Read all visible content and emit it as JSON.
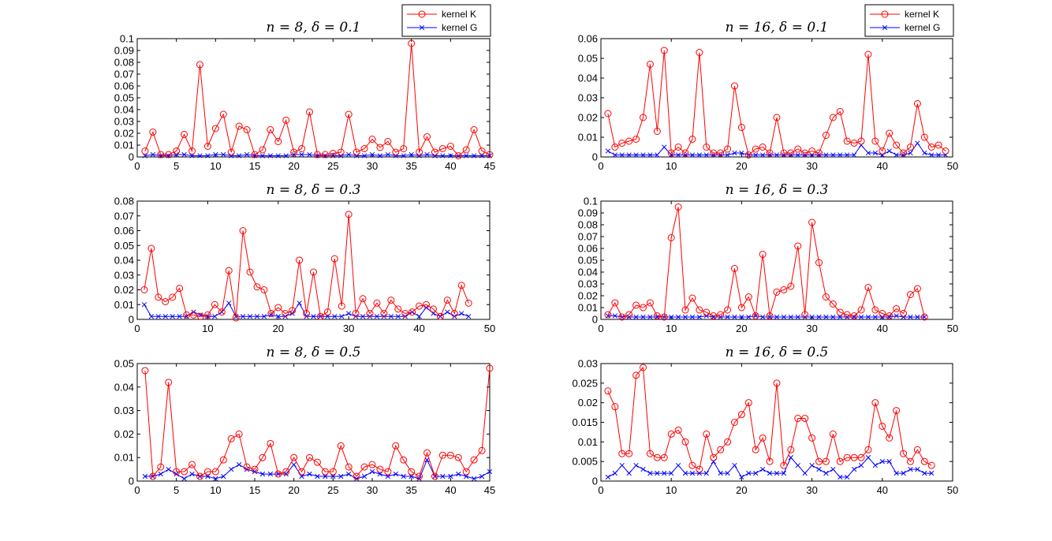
{
  "colors": {
    "kernel_k": "#ff0000",
    "kernel_g": "#0000ff"
  },
  "legend": {
    "kernel_k_label": "kernel K",
    "kernel_g_label": "kernel G"
  },
  "chart_data": [
    {
      "type": "line",
      "title": "n = 8, δ = 0.1",
      "xlim": [
        0,
        45
      ],
      "ylim": [
        0,
        0.1
      ],
      "xticks": [
        0,
        5,
        10,
        15,
        20,
        25,
        30,
        35,
        40,
        45
      ],
      "yticks": [
        0,
        0.01,
        0.02,
        0.03,
        0.04,
        0.05,
        0.06,
        0.07,
        0.08,
        0.09,
        0.1
      ],
      "xticklabels": [
        "0",
        "5",
        "10",
        "15",
        "20",
        "25",
        "30",
        "35",
        "40",
        "45"
      ],
      "yticklabels": [
        "0",
        "0.01",
        "0.02",
        "0.03",
        "0.04",
        "0.05",
        "0.06",
        "0.07",
        "0.08",
        "0.09",
        "0.1"
      ],
      "legend": true,
      "series": [
        {
          "name": "kernel K",
          "marker": "circle",
          "values": [
            0.005,
            0.021,
            0.002,
            0.002,
            0.005,
            0.019,
            0.005,
            0.078,
            0.009,
            0.024,
            0.036,
            0.004,
            0.026,
            0.023,
            0.002,
            0.006,
            0.023,
            0.013,
            0.031,
            0.004,
            0.007,
            0.038,
            0.002,
            0.002,
            0.003,
            0.004,
            0.036,
            0.004,
            0.007,
            0.015,
            0.008,
            0.013,
            0.004,
            0.007,
            0.096,
            0.004,
            0.017,
            0.004,
            0.007,
            0.009,
            0.001,
            0.006,
            0.023,
            0.005,
            0.002
          ]
        },
        {
          "name": "kernel G",
          "marker": "x",
          "values": [
            0.001,
            0.002,
            0.001,
            0.001,
            0.002,
            0.002,
            0.001,
            0.001,
            0.001,
            0.002,
            0.002,
            0.001,
            0.001,
            0.002,
            0.001,
            0.001,
            0.001,
            0.001,
            0.001,
            0.002,
            0.002,
            0.002,
            0.001,
            0.001,
            0.001,
            0.001,
            0.002,
            0.001,
            0.001,
            0.002,
            0.001,
            0.002,
            0.001,
            0.001,
            0.002,
            0.001,
            0.002,
            0.001,
            0.001,
            0.001,
            0.001,
            0.001,
            0.001,
            0.001,
            0.001
          ]
        }
      ]
    },
    {
      "type": "line",
      "title": "n = 16, δ = 0.1",
      "xlim": [
        0,
        50
      ],
      "ylim": [
        0,
        0.06
      ],
      "xticks": [
        0,
        10,
        20,
        30,
        40,
        50
      ],
      "yticks": [
        0,
        0.01,
        0.02,
        0.03,
        0.04,
        0.05,
        0.06
      ],
      "xticklabels": [
        "0",
        "10",
        "20",
        "30",
        "40",
        "50"
      ],
      "yticklabels": [
        "0",
        "0.01",
        "0.02",
        "0.03",
        "0.04",
        "0.05",
        "0.06"
      ],
      "legend": true,
      "series": [
        {
          "name": "kernel K",
          "marker": "circle",
          "values": [
            0.022,
            0.005,
            0.007,
            0.008,
            0.009,
            0.02,
            0.047,
            0.013,
            0.054,
            0.002,
            0.005,
            0.002,
            0.009,
            0.053,
            0.005,
            0.002,
            0.002,
            0.004,
            0.036,
            0.015,
            0.001,
            0.004,
            0.005,
            0.002,
            0.02,
            0.002,
            0.002,
            0.004,
            0.002,
            0.003,
            0.002,
            0.011,
            0.02,
            0.023,
            0.008,
            0.007,
            0.008,
            0.052,
            0.008,
            0.003,
            0.012,
            0.006,
            0.002,
            0.005,
            0.027,
            0.01,
            0.005,
            0.006,
            0.003
          ]
        },
        {
          "name": "kernel G",
          "marker": "x",
          "values": [
            0.003,
            0.001,
            0.001,
            0.001,
            0.001,
            0.001,
            0.001,
            0.001,
            0.005,
            0.001,
            0.001,
            0.001,
            0.001,
            0.001,
            0.001,
            0.001,
            0.001,
            0.001,
            0.002,
            0.002,
            0.001,
            0.001,
            0.001,
            0.001,
            0.001,
            0.001,
            0.001,
            0.001,
            0.001,
            0.001,
            0.001,
            0.001,
            0.001,
            0.001,
            0.001,
            0.001,
            0.006,
            0.002,
            0.002,
            0.001,
            0.003,
            0.001,
            0.001,
            0.002,
            0.007,
            0.002,
            0.001,
            0.001,
            0.001
          ]
        }
      ]
    },
    {
      "type": "line",
      "title": "n = 8, δ = 0.3",
      "xlim": [
        0,
        50
      ],
      "ylim": [
        0,
        0.08
      ],
      "xticks": [
        0,
        10,
        20,
        30,
        40,
        50
      ],
      "yticks": [
        0,
        0.01,
        0.02,
        0.03,
        0.04,
        0.05,
        0.06,
        0.07,
        0.08
      ],
      "xticklabels": [
        "0",
        "10",
        "20",
        "30",
        "40",
        "50"
      ],
      "yticklabels": [
        "0",
        "0.01",
        "0.02",
        "0.03",
        "0.04",
        "0.05",
        "0.06",
        "0.07",
        "0.08"
      ],
      "legend": false,
      "series": [
        {
          "name": "kernel K",
          "marker": "circle",
          "values": [
            0.02,
            0.048,
            0.015,
            0.012,
            0.015,
            0.021,
            0.003,
            0.003,
            0.002,
            0.003,
            0.01,
            0.005,
            0.033,
            0.001,
            0.06,
            0.032,
            0.022,
            0.02,
            0.004,
            0.008,
            0.004,
            0.006,
            0.04,
            0.004,
            0.032,
            0.002,
            0.005,
            0.041,
            0.009,
            0.071,
            0.004,
            0.014,
            0.004,
            0.011,
            0.004,
            0.013,
            0.007,
            0.004,
            0.005,
            0.009,
            0.01,
            0.007,
            0.002,
            0.013,
            0.004,
            0.023,
            0.011
          ]
        },
        {
          "name": "kernel G",
          "marker": "x",
          "values": [
            0.01,
            0.002,
            0.002,
            0.002,
            0.002,
            0.002,
            0.002,
            0.005,
            0.003,
            0.002,
            0.002,
            0.005,
            0.011,
            0.002,
            0.002,
            0.002,
            0.002,
            0.002,
            0.003,
            0.002,
            0.002,
            0.004,
            0.011,
            0.002,
            0.002,
            0.002,
            0.002,
            0.002,
            0.002,
            0.004,
            0.002,
            0.002,
            0.002,
            0.002,
            0.002,
            0.002,
            0.002,
            0.002,
            0.005,
            0.002,
            0.008,
            0.004,
            0.002,
            0.005,
            0.002,
            0.004,
            0.002
          ]
        }
      ]
    },
    {
      "type": "line",
      "title": "n = 16, δ = 0.3",
      "xlim": [
        0,
        50
      ],
      "ylim": [
        0,
        0.1
      ],
      "xticks": [
        0,
        10,
        20,
        30,
        40,
        50
      ],
      "yticks": [
        0,
        0.01,
        0.02,
        0.03,
        0.04,
        0.05,
        0.06,
        0.07,
        0.08,
        0.09,
        0.1
      ],
      "xticklabels": [
        "0",
        "10",
        "20",
        "30",
        "40",
        "50"
      ],
      "yticklabels": [
        "0",
        "0.01",
        "0.02",
        "0.03",
        "0.04",
        "0.05",
        "0.06",
        "0.07",
        "0.08",
        "0.09",
        "0.1"
      ],
      "legend": false,
      "series": [
        {
          "name": "kernel K",
          "marker": "circle",
          "values": [
            0.004,
            0.014,
            0.002,
            0.004,
            0.012,
            0.01,
            0.014,
            0.003,
            0.002,
            0.069,
            0.095,
            0.008,
            0.018,
            0.008,
            0.006,
            0.003,
            0.004,
            0.008,
            0.043,
            0.01,
            0.019,
            0.003,
            0.055,
            0.003,
            0.023,
            0.025,
            0.028,
            0.062,
            0.004,
            0.082,
            0.048,
            0.019,
            0.013,
            0.006,
            0.004,
            0.003,
            0.008,
            0.027,
            0.008,
            0.005,
            0.003,
            0.009,
            0.005,
            0.021,
            0.026,
            0.002
          ]
        },
        {
          "name": "kernel G",
          "marker": "x",
          "values": [
            0.003,
            0.003,
            0.002,
            0.002,
            0.002,
            0.002,
            0.002,
            0.002,
            0.002,
            0.002,
            0.002,
            0.002,
            0.002,
            0.002,
            0.003,
            0.002,
            0.002,
            0.002,
            0.002,
            0.002,
            0.002,
            0.003,
            0.002,
            0.002,
            0.002,
            0.002,
            0.002,
            0.002,
            0.002,
            0.002,
            0.002,
            0.002,
            0.002,
            0.002,
            0.002,
            0.002,
            0.002,
            0.002,
            0.002,
            0.002,
            0.002,
            0.003,
            0.002,
            0.002,
            0.002,
            0.002
          ]
        }
      ]
    },
    {
      "type": "line",
      "title": "n = 8, δ = 0.5",
      "xlim": [
        0,
        45
      ],
      "ylim": [
        0,
        0.05
      ],
      "xticks": [
        0,
        5,
        10,
        15,
        20,
        25,
        30,
        35,
        40,
        45
      ],
      "yticks": [
        0,
        0.01,
        0.02,
        0.03,
        0.04,
        0.05
      ],
      "xticklabels": [
        "0",
        "5",
        "10",
        "15",
        "20",
        "25",
        "30",
        "35",
        "40",
        "45"
      ],
      "yticklabels": [
        "0",
        "0.01",
        "0.02",
        "0.03",
        "0.04",
        "0.05"
      ],
      "legend": false,
      "series": [
        {
          "name": "kernel K",
          "marker": "circle",
          "values": [
            0.047,
            0.002,
            0.006,
            0.042,
            0.004,
            0.004,
            0.007,
            0.002,
            0.004,
            0.004,
            0.009,
            0.018,
            0.02,
            0.006,
            0.005,
            0.01,
            0.016,
            0.003,
            0.004,
            0.01,
            0.004,
            0.01,
            0.008,
            0.004,
            0.004,
            0.015,
            0.006,
            0.002,
            0.006,
            0.007,
            0.005,
            0.004,
            0.015,
            0.009,
            0.004,
            0.002,
            0.012,
            0.002,
            0.011,
            0.011,
            0.01,
            0.004,
            0.009,
            0.013,
            0.048
          ]
        },
        {
          "name": "kernel G",
          "marker": "x",
          "values": [
            0.002,
            0.002,
            0.003,
            0.005,
            0.003,
            0.001,
            0.003,
            0.002,
            0.002,
            0.001,
            0.002,
            0.005,
            0.007,
            0.005,
            0.004,
            0.003,
            0.003,
            0.003,
            0.003,
            0.007,
            0.002,
            0.003,
            0.002,
            0.002,
            0.002,
            0.002,
            0.003,
            0.001,
            0.002,
            0.004,
            0.003,
            0.002,
            0.003,
            0.002,
            0.002,
            0.001,
            0.009,
            0.002,
            0.002,
            0.002,
            0.003,
            0.002,
            0.001,
            0.002,
            0.004
          ]
        }
      ]
    },
    {
      "type": "line",
      "title": "n = 16, δ = 0.5",
      "xlim": [
        0,
        50
      ],
      "ylim": [
        0,
        0.03
      ],
      "xticks": [
        0,
        10,
        20,
        30,
        40,
        50
      ],
      "yticks": [
        0,
        0.005,
        0.01,
        0.015,
        0.02,
        0.025,
        0.03
      ],
      "xticklabels": [
        "0",
        "10",
        "20",
        "30",
        "40",
        "50"
      ],
      "yticklabels": [
        "0",
        "0.005",
        "0.01",
        "0.015",
        "0.02",
        "0.025",
        "0.03"
      ],
      "legend": false,
      "series": [
        {
          "name": "kernel K",
          "marker": "circle",
          "values": [
            0.023,
            0.019,
            0.007,
            0.007,
            0.027,
            0.029,
            0.007,
            0.006,
            0.006,
            0.012,
            0.013,
            0.01,
            0.004,
            0.003,
            0.012,
            0.006,
            0.008,
            0.01,
            0.015,
            0.017,
            0.02,
            0.008,
            0.011,
            0.005,
            0.025,
            0.004,
            0.008,
            0.016,
            0.016,
            0.011,
            0.005,
            0.005,
            0.012,
            0.005,
            0.006,
            0.006,
            0.006,
            0.008,
            0.02,
            0.014,
            0.011,
            0.018,
            0.007,
            0.005,
            0.008,
            0.005,
            0.004
          ]
        },
        {
          "name": "kernel G",
          "marker": "x",
          "values": [
            0.001,
            0.002,
            0.004,
            0.002,
            0.004,
            0.003,
            0.002,
            0.002,
            0.002,
            0.002,
            0.004,
            0.002,
            0.002,
            0.002,
            0.002,
            0.005,
            0.002,
            0.002,
            0.004,
            0.001,
            0.002,
            0.002,
            0.003,
            0.002,
            0.002,
            0.002,
            0.006,
            0.004,
            0.002,
            0.004,
            0.003,
            0.002,
            0.003,
            0.001,
            0.001,
            0.003,
            0.004,
            0.006,
            0.004,
            0.005,
            0.005,
            0.002,
            0.002,
            0.003,
            0.003,
            0.002,
            0.002
          ]
        }
      ]
    }
  ]
}
